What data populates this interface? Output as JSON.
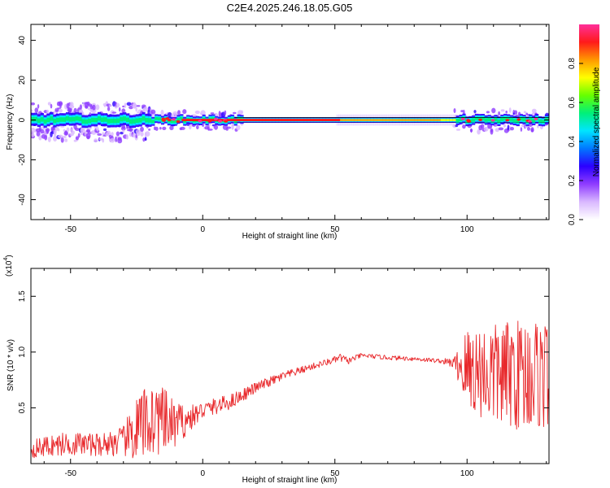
{
  "title": "C2E4.2025.246.18.05.G05",
  "chart_data": [
    {
      "type": "heatmap",
      "name": "spectrogram",
      "xlabel": "Height of straight line (km)",
      "ylabel": "Frequency (Hz)",
      "xlim": [
        -65,
        131
      ],
      "ylim": [
        -50,
        48
      ],
      "xticks": [
        -50,
        0,
        50,
        100
      ],
      "yticks": [
        -40,
        -20,
        0,
        20,
        40
      ],
      "ridge_frequency_hz": 0,
      "colorbar": {
        "label": "Normalized spectral amplitude",
        "range": [
          0,
          1
        ],
        "ticks": [
          "0.0",
          "0.2",
          "0.4",
          "0.6",
          "0.8"
        ],
        "colors": [
          "#ffffff",
          "#d9b8ff",
          "#8f3cff",
          "#2b00ff",
          "#0077ff",
          "#00e5ff",
          "#00f07a",
          "#66ff00",
          "#ffff00",
          "#ff9900",
          "#ff1a1a",
          "#ff2f9a"
        ]
      }
    },
    {
      "type": "line",
      "name": "snr",
      "xlabel": "Height of straight line (km)",
      "ylabel": "SNR (10 * v/v)",
      "multiplier_label": "(x10",
      "multiplier_exp": "4",
      "xlim": [
        -65,
        131
      ],
      "ylim": [
        0,
        1.75
      ],
      "xticks": [
        -50,
        0,
        50,
        100
      ],
      "yticks": [
        "0.5",
        "1.0",
        "1.5"
      ],
      "series_color": "#e8282b",
      "envelope": {
        "x": [
          -65,
          -58,
          -50,
          -40,
          -30,
          -25,
          -20,
          -15,
          -10,
          -5,
          0,
          10,
          20,
          30,
          40,
          50,
          52,
          55,
          60,
          70,
          80,
          90,
          95,
          100,
          110,
          120,
          131
        ],
        "mean": [
          0.13,
          0.16,
          0.18,
          0.17,
          0.2,
          0.3,
          0.4,
          0.38,
          0.35,
          0.4,
          0.48,
          0.55,
          0.68,
          0.78,
          0.86,
          0.93,
          0.95,
          0.92,
          0.97,
          0.95,
          0.94,
          0.92,
          0.9,
          0.85,
          0.8,
          0.8,
          0.8
        ],
        "amplitude": [
          0.08,
          0.1,
          0.11,
          0.1,
          0.14,
          0.3,
          0.33,
          0.3,
          0.2,
          0.12,
          0.08,
          0.07,
          0.05,
          0.04,
          0.03,
          0.03,
          0.04,
          0.03,
          0.02,
          0.02,
          0.02,
          0.02,
          0.05,
          0.38,
          0.45,
          0.5,
          0.5
        ]
      }
    }
  ]
}
